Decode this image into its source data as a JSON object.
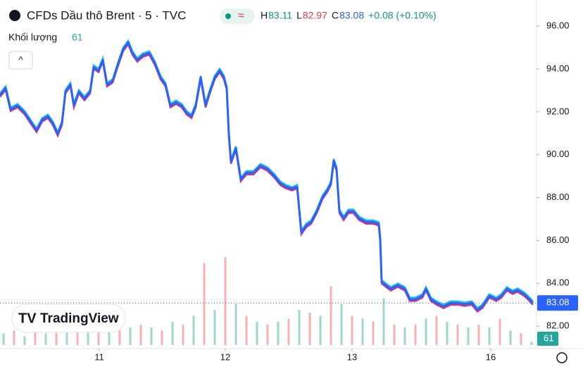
{
  "chart_data": {
    "type": "line",
    "title": "CFDs Dầu thô Brent · 5 · TVC",
    "ohlc": [
      {
        "label": "H",
        "value": 83.11
      },
      {
        "label": "L",
        "value": 82.97
      },
      {
        "label": "C",
        "value": 83.08
      }
    ],
    "change_label": "+0.08 (+0.10%)",
    "volume_title": "Khối lượng",
    "brand": "TradingView",
    "collapse_icon": "^",
    "xlim": [
      0,
      762
    ],
    "xticks": [
      {
        "value": 141,
        "label": "11"
      },
      {
        "value": 320,
        "label": "12"
      },
      {
        "value": 500,
        "label": "13"
      },
      {
        "value": 697,
        "label": "16"
      }
    ],
    "ylim": [
      80.95,
      97.22
    ],
    "yticks": [
      {
        "value": 82,
        "label": "82.00"
      },
      {
        "value": 84,
        "label": "84.00"
      },
      {
        "value": 86,
        "label": "86.00"
      },
      {
        "value": 88,
        "label": "88.00"
      },
      {
        "value": 90,
        "label": "90.00"
      },
      {
        "value": 92,
        "label": "92.00"
      },
      {
        "value": 94,
        "label": "94.00"
      },
      {
        "value": 96,
        "label": "96.00"
      }
    ],
    "series": [
      {
        "name": "Brent",
        "color": "#2962ff",
        "x": [
          0,
          8,
          15,
          25,
          35,
          45,
          52,
          60,
          68,
          75,
          82,
          88,
          93,
          100,
          105,
          112,
          120,
          128,
          133,
          140,
          146,
          152,
          160,
          168,
          175,
          182,
          188,
          195,
          203,
          212,
          220,
          228,
          235,
          242,
          250,
          258,
          265,
          272,
          278,
          285,
          292,
          298,
          305,
          312,
          318,
          322,
          325,
          328,
          335,
          342,
          350,
          360,
          370,
          380,
          390,
          398,
          406,
          415,
          422,
          428,
          435,
          442,
          450,
          458,
          465,
          470,
          474,
          478,
          482,
          488,
          495,
          502,
          510,
          520,
          530,
          538,
          540,
          542,
          548,
          555,
          565,
          575,
          582,
          590,
          600,
          605,
          612,
          620,
          630,
          640,
          650,
          660,
          670,
          678,
          685,
          695,
          705,
          712,
          720,
          728,
          735,
          745,
          752,
          757
        ],
        "values": [
          92.78,
          93.11,
          92.12,
          92.29,
          91.96,
          91.47,
          91.14,
          91.63,
          91.79,
          91.47,
          90.97,
          91.47,
          92.94,
          93.27,
          92.29,
          92.94,
          92.62,
          92.94,
          94.09,
          93.93,
          94.42,
          93.27,
          93.44,
          94.26,
          94.92,
          95.24,
          94.75,
          94.42,
          94.65,
          94.75,
          94.26,
          93.6,
          93.27,
          92.29,
          92.45,
          92.29,
          91.96,
          91.79,
          92.29,
          93.6,
          92.29,
          92.94,
          93.6,
          93.93,
          93.6,
          93.11,
          90.97,
          89.66,
          90.31,
          88.84,
          89.16,
          89.16,
          89.49,
          89.33,
          89.0,
          88.67,
          88.51,
          88.41,
          88.51,
          86.37,
          86.7,
          86.86,
          87.36,
          88.01,
          88.34,
          88.67,
          89.72,
          89.33,
          87.36,
          87.03,
          87.36,
          87.36,
          87.03,
          86.86,
          86.86,
          86.77,
          86.04,
          84.07,
          83.91,
          83.74,
          83.91,
          83.74,
          83.25,
          83.25,
          83.41,
          83.74,
          83.25,
          83.08,
          82.92,
          83.08,
          83.08,
          83.02,
          83.08,
          82.76,
          82.92,
          83.41,
          83.25,
          83.41,
          83.74,
          83.58,
          83.68,
          83.48,
          83.25,
          83.08
        ]
      }
    ],
    "volume": {
      "colors": [
        "#26a69a",
        "#ef5350"
      ],
      "x": [
        5,
        20,
        35,
        50,
        65,
        80,
        95,
        110,
        125,
        140,
        155,
        170,
        185,
        200,
        215,
        230,
        245,
        260,
        275,
        290,
        305,
        320,
        335,
        350,
        365,
        380,
        395,
        410,
        425,
        440,
        455,
        470,
        485,
        500,
        515,
        530,
        545,
        560,
        575,
        590,
        605,
        620,
        635,
        650,
        665,
        680,
        695,
        710,
        725,
        740,
        755
      ],
      "values": [
        200,
        250,
        150,
        300,
        200,
        250,
        700,
        300,
        650,
        350,
        300,
        250,
        300,
        350,
        300,
        250,
        400,
        350,
        500,
        1400,
        600,
        1500,
        700,
        500,
        400,
        350,
        400,
        450,
        600,
        550,
        500,
        1000,
        700,
        500,
        450,
        400,
        800,
        350,
        300,
        350,
        450,
        500,
        400,
        350,
        300,
        350,
        300,
        450,
        250,
        200,
        61
      ]
    }
  }
}
